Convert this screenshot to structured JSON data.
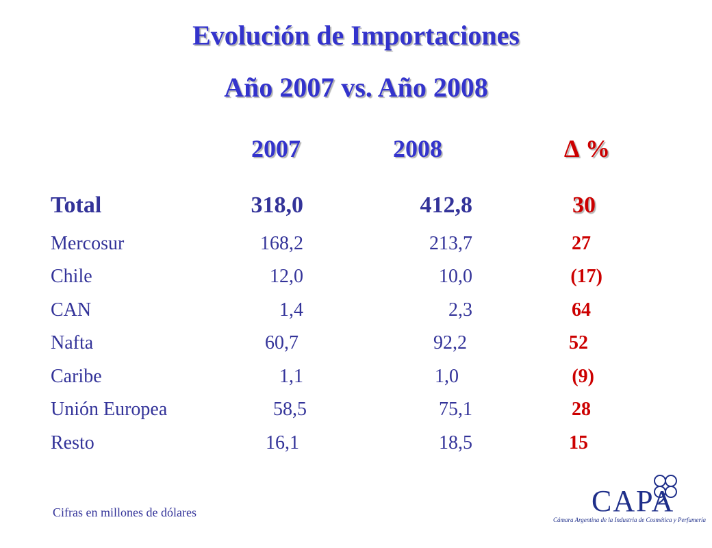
{
  "title": "Evolución de Importaciones",
  "subtitle": "Año 2007  vs.  Año 2008",
  "columns": {
    "c2007": "2007",
    "c2008": "2008",
    "delta": "∆ %"
  },
  "rows": [
    {
      "label": "Total",
      "v2007": "318,0",
      "v2008": "412,8",
      "delta": "30"
    },
    {
      "label": "Mercosur",
      "v2007": "168,2",
      "v2008": "213,7",
      "delta": "27"
    },
    {
      "label": "Chile",
      "v2007": "12,0",
      "v2008": "10,0",
      "delta": "(17)"
    },
    {
      "label": "CAN",
      "v2007": "1,4",
      "v2008": "2,3",
      "delta": "64"
    },
    {
      "label": "Nafta",
      "v2007": "60,7",
      "v2008": "92,2",
      "delta": "52"
    },
    {
      "label": "Caribe",
      "v2007": "1,1",
      "v2008": "1,0",
      "delta": "(9)"
    },
    {
      "label": "Unión Europea",
      "v2007": "58,5",
      "v2008": "75,1",
      "delta": "28"
    },
    {
      "label": "Resto",
      "v2007": "16,1",
      "v2008": "18,5",
      "delta": "15"
    }
  ],
  "note": "Cifras en millones de dólares",
  "logo": {
    "word": "CAPA",
    "caption": "Cámara Argentina de la Industria de Cosmética y Perfumería",
    "icon": "flower-icon",
    "color": "#1f2f8a"
  },
  "colors": {
    "title": "#3333cc",
    "body_text": "#333399",
    "delta": "#cc0000"
  }
}
